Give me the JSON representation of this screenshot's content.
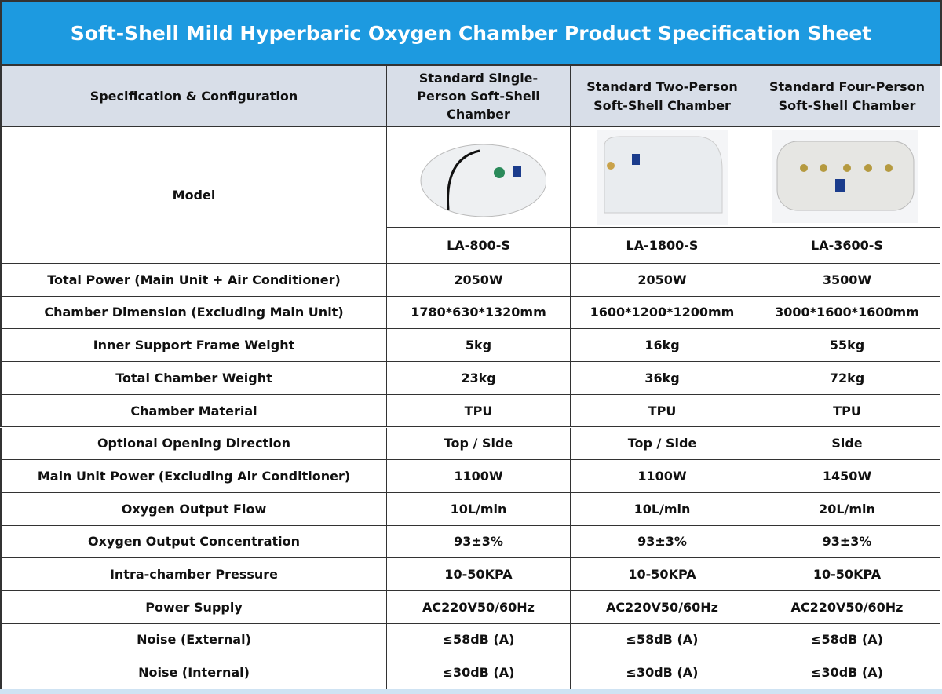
{
  "title": "Soft-Shell Mild Hyperbaric Oxygen Chamber Product Specification Sheet",
  "table": {
    "header": [
      "Specification & Configuration",
      "Standard Single-Person Soft-Shell Chamber",
      "Standard Two-Person Soft-Shell Chamber",
      "Standard Four-Person Soft-Shell Chamber"
    ],
    "model_label": "Model",
    "models": [
      "LA-800-S",
      "LA-1800-S",
      "LA-3600-S"
    ],
    "rows": [
      [
        "Total Power (Main Unit + Air Conditioner)",
        "2050W",
        "2050W",
        "3500W"
      ],
      [
        "Chamber Dimension (Excluding Main Unit)",
        "1780*630*1320mm",
        "1600*1200*1200mm",
        "3000*1600*1600mm"
      ],
      [
        "Inner Support Frame Weight",
        "5kg",
        "16kg",
        "55kg"
      ],
      [
        "Total Chamber Weight",
        "23kg",
        "36kg",
        "72kg"
      ],
      [
        "Chamber Material",
        "TPU",
        "TPU",
        "TPU"
      ],
      [
        "Optional Opening Direction",
        "Top / Side",
        "Top / Side",
        "Side"
      ],
      [
        "Main Unit Power (Excluding Air Conditioner)",
        "1100W",
        "1100W",
        "1450W"
      ],
      [
        "Oxygen Output Flow",
        "10L/min",
        "10L/min",
        "20L/min"
      ],
      [
        "Oxygen Output Concentration",
        "93±3%",
        "93±3%",
        "93±3%"
      ],
      [
        "Intra-chamber Pressure",
        "10-50KPA",
        "10-50KPA",
        "10-50KPA"
      ],
      [
        "Power Supply",
        "AC220V50/60Hz",
        "AC220V50/60Hz",
        "AC220V50/60Hz"
      ],
      [
        "Noise (External)",
        "≤58dB (A)",
        "≤58dB (A)",
        "≤58dB (A)"
      ],
      [
        "Noise (Internal)",
        "≤30dB (A)",
        "≤30dB (A)",
        "≤30dB (A)"
      ]
    ]
  }
}
